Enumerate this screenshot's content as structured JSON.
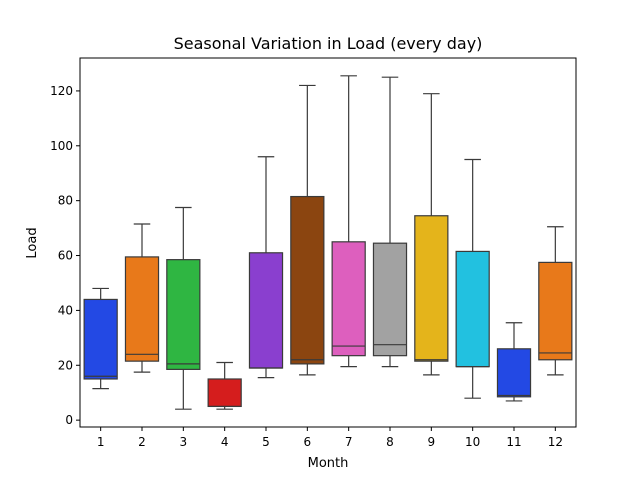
{
  "chart_data": {
    "type": "box",
    "title": "Seasonal Variation in Load (every day)",
    "xlabel": "Month",
    "ylabel": "Load",
    "ylim": [
      -2.5,
      132
    ],
    "yticks": [
      0,
      20,
      40,
      60,
      80,
      100,
      120
    ],
    "grid": false,
    "categories": [
      "1",
      "2",
      "3",
      "4",
      "5",
      "6",
      "7",
      "8",
      "9",
      "10",
      "11",
      "12"
    ],
    "colors": [
      "#2349e4",
      "#e8791a",
      "#2fb642",
      "#d51d1d",
      "#8a3fcf",
      "#8b4510",
      "#dd5fbe",
      "#a2a2a2",
      "#e4b41b",
      "#22c1e0",
      "#2349e4",
      "#e8791a"
    ],
    "boxes": [
      {
        "whislo": 11.5,
        "q1": 15,
        "med": 16,
        "q3": 44,
        "whishi": 48
      },
      {
        "whislo": 17.5,
        "q1": 21.5,
        "med": 24,
        "q3": 59.5,
        "whishi": 71.5
      },
      {
        "whislo": 4,
        "q1": 18.5,
        "med": 20.5,
        "q3": 58.5,
        "whishi": 77.5
      },
      {
        "whislo": 4,
        "q1": 5,
        "med": 5,
        "q3": 15,
        "whishi": 21
      },
      {
        "whislo": 15.5,
        "q1": 19,
        "med": 19,
        "q3": 61,
        "whishi": 96
      },
      {
        "whislo": 16.5,
        "q1": 20.5,
        "med": 22,
        "q3": 81.5,
        "whishi": 122
      },
      {
        "whislo": 19.5,
        "q1": 23.5,
        "med": 27,
        "q3": 65,
        "whishi": 125.5
      },
      {
        "whislo": 19.5,
        "q1": 23.5,
        "med": 27.5,
        "q3": 64.5,
        "whishi": 125
      },
      {
        "whislo": 16.5,
        "q1": 21.5,
        "med": 22,
        "q3": 74.5,
        "whishi": 119
      },
      {
        "whislo": 8,
        "q1": 19.5,
        "med": 19.5,
        "q3": 61.5,
        "whishi": 95
      },
      {
        "whislo": 7,
        "q1": 8.5,
        "med": 9,
        "q3": 26,
        "whishi": 35.5
      },
      {
        "whislo": 16.5,
        "q1": 22,
        "med": 24.5,
        "q3": 57.5,
        "whishi": 70.5
      }
    ]
  }
}
